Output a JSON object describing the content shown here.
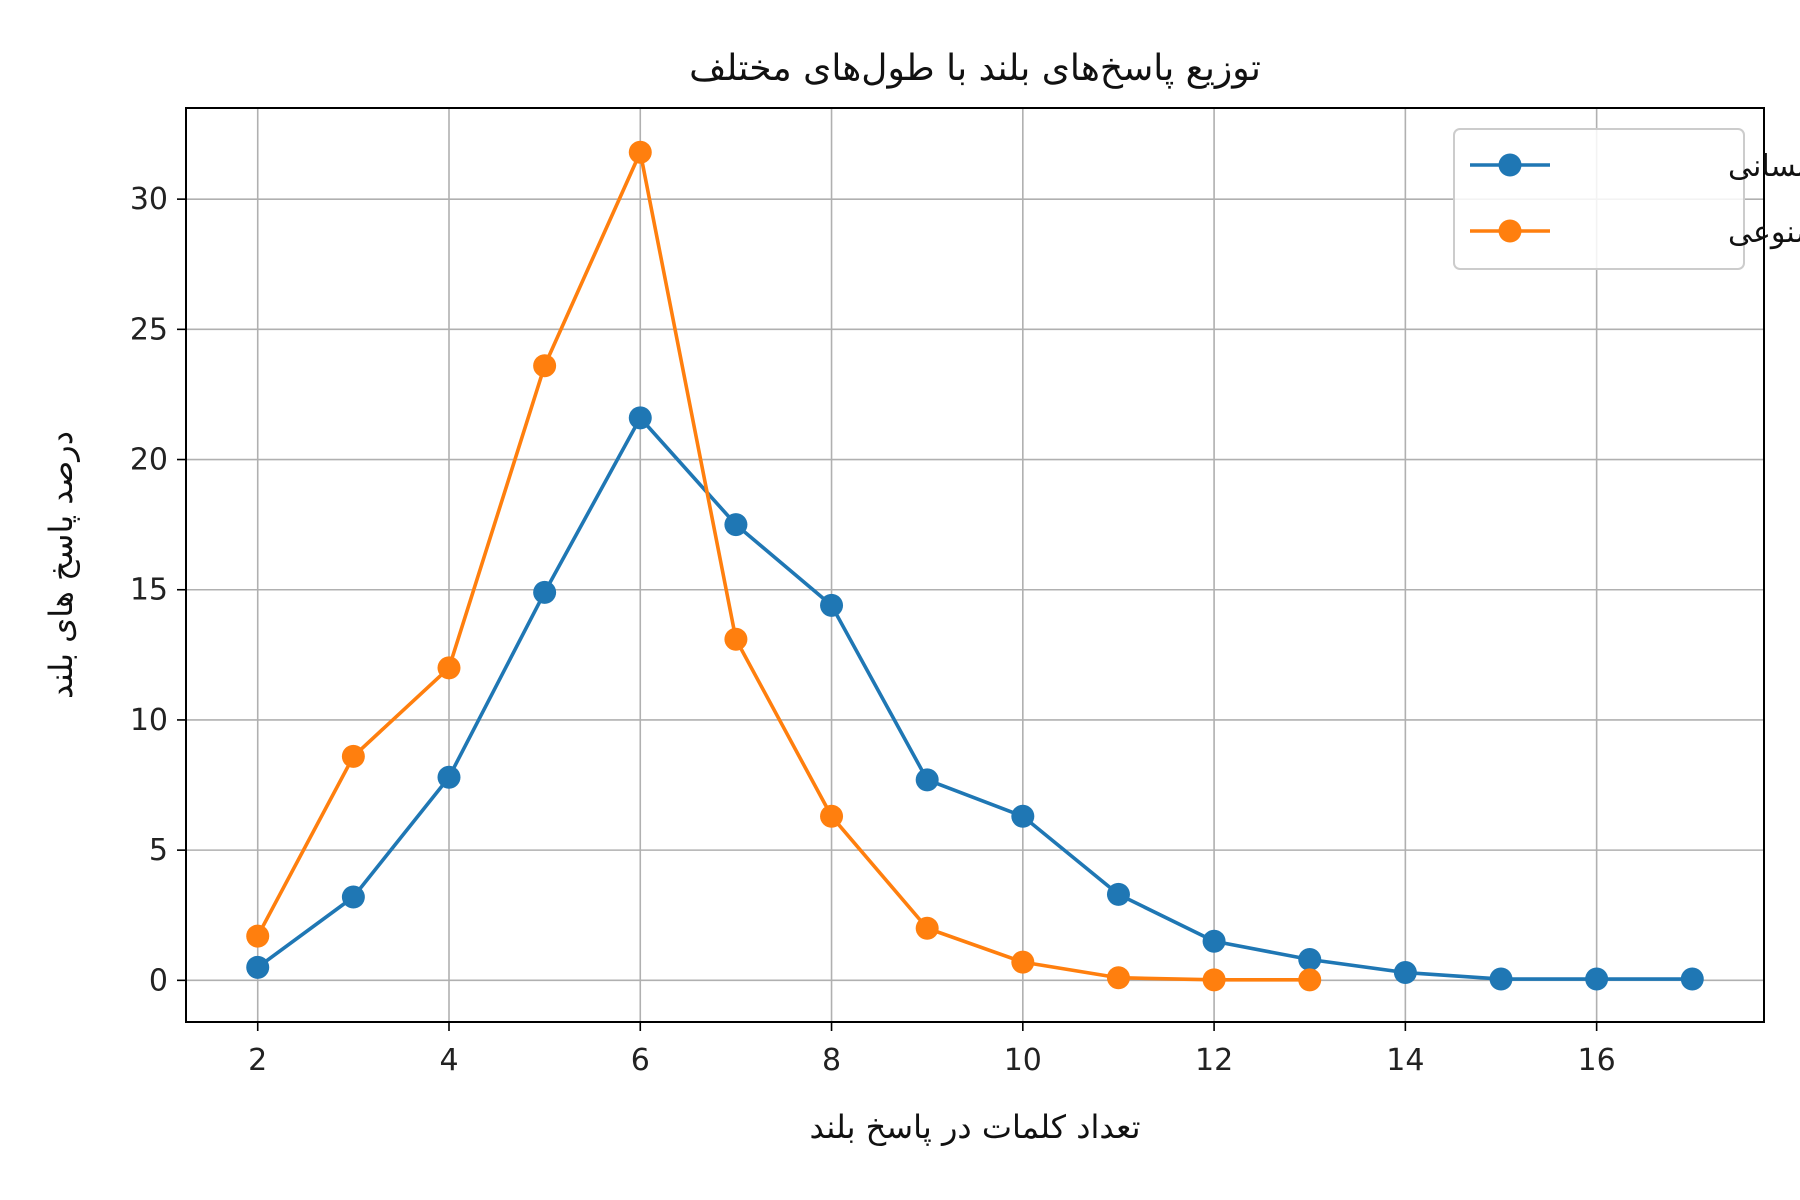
{
  "chart_data": {
    "type": "line",
    "title": "توزیع پاسخ‌های بلند با طول‌های مختلف",
    "xlabel": "تعداد کلمات در پاسخ بلند",
    "ylabel": "درصد پاسخ های بلند",
    "xlim": [
      1.25,
      17.75
    ],
    "ylim": [
      -1.6,
      33.5
    ],
    "xticks": [
      "2",
      "4",
      "6",
      "8",
      "10",
      "12",
      "14",
      "16"
    ],
    "yticks": [
      "0",
      "5",
      "10",
      "15",
      "20",
      "25",
      "30"
    ],
    "grid": true,
    "legend_position": "top-right",
    "series": [
      {
        "name": "انسانی",
        "color": "#1f77b4",
        "marker": "circle",
        "x": [
          2,
          3,
          4,
          5,
          6,
          7,
          8,
          9,
          10,
          11,
          12,
          13,
          14,
          15,
          16,
          17
        ],
        "values": [
          0.5,
          3.2,
          7.8,
          14.9,
          21.6,
          17.5,
          14.4,
          7.7,
          6.3,
          3.3,
          1.5,
          0.8,
          0.3,
          0.05,
          0.05,
          0.05
        ]
      },
      {
        "name": "مصنوعی",
        "color": "#ff7f0e",
        "marker": "circle",
        "x": [
          2,
          3,
          4,
          5,
          6,
          7,
          8,
          9,
          10,
          11,
          12,
          13
        ],
        "values": [
          1.7,
          8.6,
          12.0,
          23.6,
          31.8,
          13.1,
          6.3,
          2.0,
          0.7,
          0.1,
          0.02,
          0.02
        ]
      }
    ]
  }
}
